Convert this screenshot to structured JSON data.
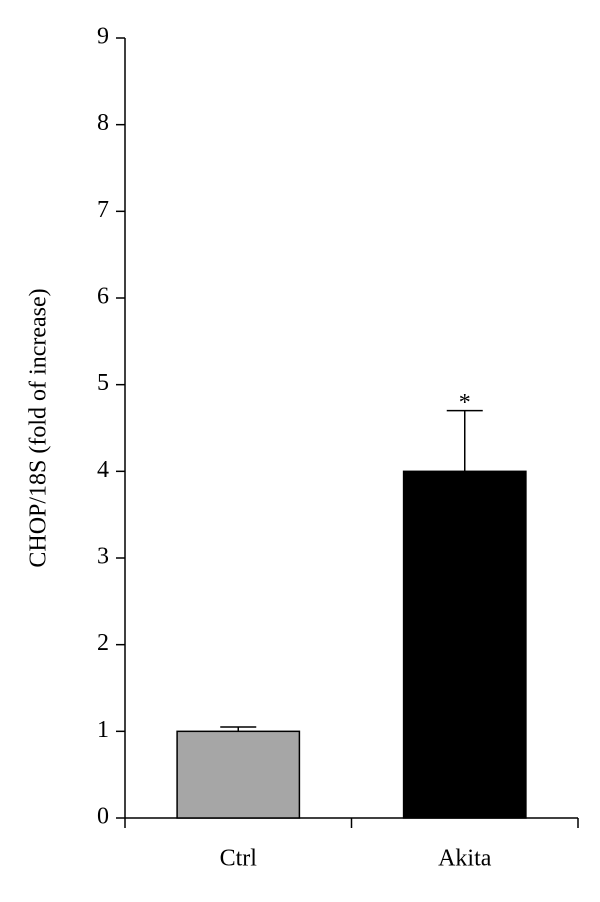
{
  "chart_data": {
    "type": "bar",
    "ylabel": "CHOP/18S (fold of increase)",
    "categories": [
      "Ctrl",
      "Akita"
    ],
    "values": [
      1.0,
      4.0
    ],
    "errors": [
      0.05,
      0.7
    ],
    "colors": [
      "#a6a6a6",
      "#000000"
    ],
    "ylim": [
      0,
      9
    ],
    "yticks": [
      0,
      1,
      2,
      3,
      4,
      5,
      6,
      7,
      8,
      9
    ],
    "annotations": [
      {
        "text": "*",
        "category": "Akita"
      }
    ]
  }
}
